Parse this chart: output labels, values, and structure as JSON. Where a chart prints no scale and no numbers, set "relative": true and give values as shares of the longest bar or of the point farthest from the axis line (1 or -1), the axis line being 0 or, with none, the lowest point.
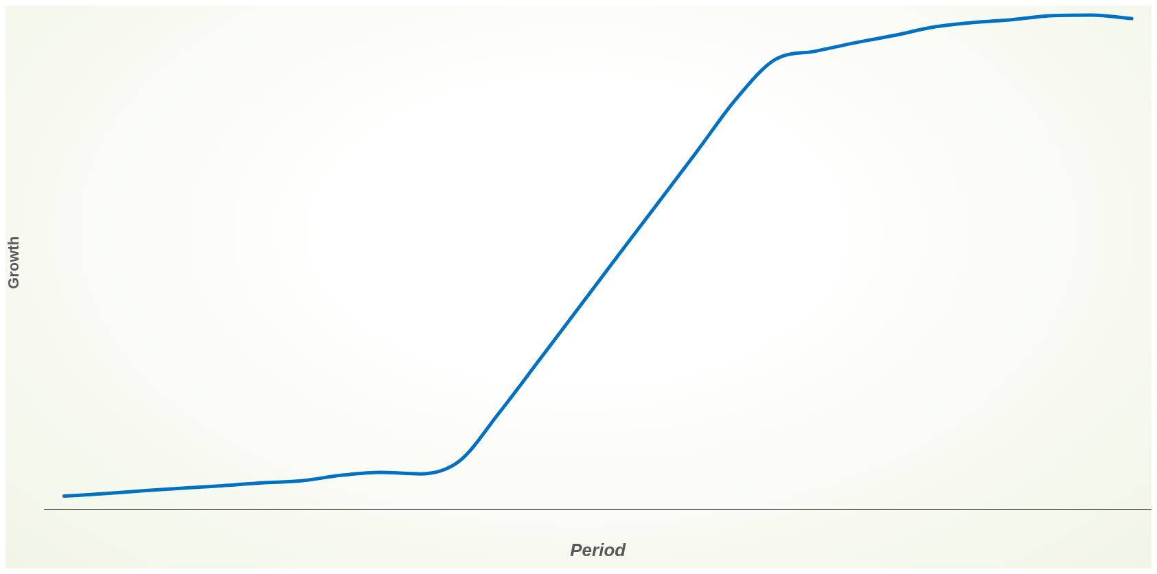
{
  "chart_data": {
    "type": "line",
    "xlabel": "Period",
    "ylabel": "Growth",
    "relative": true,
    "grid": false,
    "legend": false,
    "marker": "none",
    "line_style": "solid",
    "categories": [
      null,
      null,
      null,
      null,
      null,
      null,
      null,
      null,
      null,
      null,
      null,
      null,
      null,
      null,
      null,
      null,
      null,
      null,
      null,
      null,
      null,
      null,
      null,
      null,
      null,
      null,
      null,
      null
    ],
    "series": [
      {
        "color": "#0070c0",
        "values": [
          0.028,
          0.033,
          0.039,
          0.044,
          0.049,
          0.055,
          0.059,
          0.07,
          0.076,
          0.073,
          0.099,
          0.196,
          0.301,
          0.407,
          0.513,
          0.618,
          0.724,
          0.831,
          0.911,
          0.927,
          0.944,
          0.959,
          0.976,
          0.985,
          0.991,
          0.999,
          1,
          0.993
        ]
      }
    ]
  }
}
